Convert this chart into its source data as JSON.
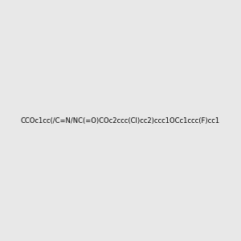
{
  "smiles": "CCOc1cc(/C=N/NC(=O)COc2ccc(Cl)cc2)ccc1OCc1ccc(F)cc1",
  "title": "",
  "bg_color": "#e8e8e8",
  "atom_colors": {
    "O": "#ff0000",
    "N": "#0000ff",
    "F": "#ff00ff",
    "Cl": "#00aa00",
    "H": "#888888",
    "C": "#000000"
  },
  "figsize": [
    3.0,
    3.0
  ],
  "dpi": 100
}
